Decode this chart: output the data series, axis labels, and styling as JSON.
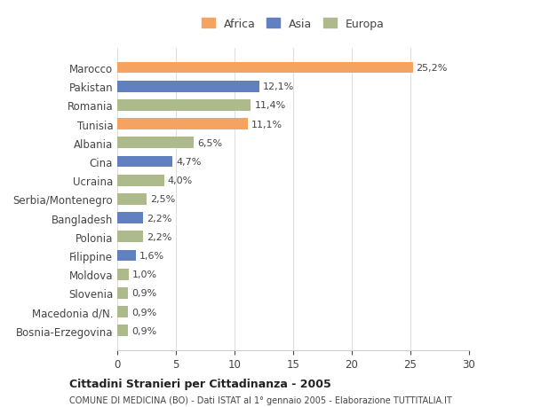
{
  "categories": [
    "Marocco",
    "Pakistan",
    "Romania",
    "Tunisia",
    "Albania",
    "Cina",
    "Ucraina",
    "Serbia/Montenegro",
    "Bangladesh",
    "Polonia",
    "Filippine",
    "Moldova",
    "Slovenia",
    "Macedonia d/N.",
    "Bosnia-Erzegovina"
  ],
  "values": [
    25.2,
    12.1,
    11.4,
    11.1,
    6.5,
    4.7,
    4.0,
    2.5,
    2.2,
    2.2,
    1.6,
    1.0,
    0.9,
    0.9,
    0.9
  ],
  "labels": [
    "25,2%",
    "12,1%",
    "11,4%",
    "11,1%",
    "6,5%",
    "4,7%",
    "4,0%",
    "2,5%",
    "2,2%",
    "2,2%",
    "1,6%",
    "1,0%",
    "0,9%",
    "0,9%",
    "0,9%"
  ],
  "continents": [
    "Africa",
    "Asia",
    "Europa",
    "Africa",
    "Europa",
    "Asia",
    "Europa",
    "Europa",
    "Asia",
    "Europa",
    "Asia",
    "Europa",
    "Europa",
    "Europa",
    "Europa"
  ],
  "colors": {
    "Africa": "#F4A460",
    "Asia": "#6080C0",
    "Europa": "#ADBA8C"
  },
  "legend_labels": [
    "Africa",
    "Asia",
    "Europa"
  ],
  "legend_colors": [
    "#F4A460",
    "#6080C0",
    "#ADBA8C"
  ],
  "xlim": [
    0,
    30
  ],
  "xticks": [
    0,
    5,
    10,
    15,
    20,
    25,
    30
  ],
  "title": "Cittadini Stranieri per Cittadinanza - 2005",
  "subtitle": "COMUNE DI MEDICINA (BO) - Dati ISTAT al 1° gennaio 2005 - Elaborazione TUTTITALIA.IT",
  "bg_color": "#ffffff",
  "bar_height": 0.6
}
